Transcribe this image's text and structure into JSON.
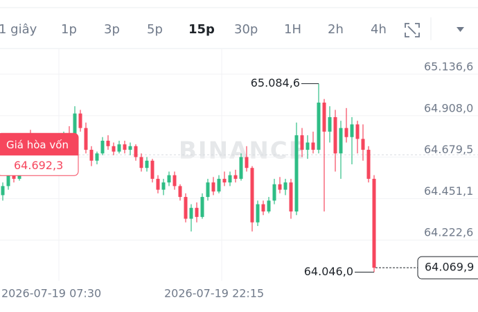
{
  "toolbar": {
    "tabs": [
      "1 giây",
      "1p",
      "3p",
      "5p",
      "15p",
      "30p",
      "1H",
      "2h",
      "4h"
    ],
    "active": "15p"
  },
  "chart_data": {
    "type": "candlestick",
    "watermark": "BINANCE",
    "up_color": "#2ebd85",
    "down_color": "#f6465d",
    "x_labels": [
      "2026-07-19 07:30",
      "2026-07-19 22:15"
    ],
    "ylim": [
      63998,
      65278
    ],
    "yticks": [
      {
        "value": 65136.6,
        "label": "65.136,6"
      },
      {
        "value": 64908.0,
        "label": "64.908,0"
      },
      {
        "value": 64679.5,
        "label": "64.679,5"
      },
      {
        "value": 64451.1,
        "label": "64.451,1"
      },
      {
        "value": 64222.6,
        "label": "64.222,6"
      }
    ],
    "grid": true,
    "break_even": {
      "title": "Giá hòa vốn",
      "value": 64692.3,
      "label": "64.692,3"
    },
    "current_price": {
      "value": 64069.9,
      "label": "64.069,9"
    },
    "high_label": {
      "value": 65084.6,
      "label": "65.084,6"
    },
    "low_label": {
      "value": 64046.0,
      "label": "64.046,0"
    },
    "candles": [
      [
        64470,
        64540,
        64440,
        64520
      ],
      [
        64520,
        64600,
        64500,
        64580
      ],
      [
        64580,
        64640,
        64540,
        64560
      ],
      [
        64560,
        64720,
        64550,
        64700
      ],
      [
        64700,
        64790,
        64680,
        64760
      ],
      [
        64760,
        64830,
        64720,
        64740
      ],
      [
        64740,
        64760,
        64640,
        64670
      ],
      [
        64670,
        64720,
        64620,
        64700
      ],
      [
        64700,
        64730,
        64650,
        64660
      ],
      [
        64660,
        64700,
        64610,
        64680
      ],
      [
        64680,
        64760,
        64660,
        64740
      ],
      [
        64740,
        64820,
        64720,
        64800
      ],
      [
        64800,
        64850,
        64750,
        64780
      ],
      [
        64780,
        64960,
        64770,
        64920
      ],
      [
        64920,
        64940,
        64820,
        64840
      ],
      [
        64840,
        64870,
        64700,
        64720
      ],
      [
        64720,
        64740,
        64630,
        64660
      ],
      [
        64660,
        64710,
        64640,
        64700
      ],
      [
        64700,
        64790,
        64690,
        64770
      ],
      [
        64770,
        64800,
        64720,
        64740
      ],
      [
        64740,
        64760,
        64690,
        64710
      ],
      [
        64710,
        64770,
        64700,
        64750
      ],
      [
        64750,
        64770,
        64700,
        64720
      ],
      [
        64720,
        64760,
        64690,
        64740
      ],
      [
        64740,
        64750,
        64660,
        64680
      ],
      [
        64680,
        64700,
        64600,
        64620
      ],
      [
        64620,
        64680,
        64600,
        64660
      ],
      [
        64660,
        64670,
        64540,
        64560
      ],
      [
        64560,
        64580,
        64480,
        64500
      ],
      [
        64500,
        64560,
        64470,
        64540
      ],
      [
        64540,
        64600,
        64520,
        64580
      ],
      [
        64580,
        64600,
        64500,
        64520
      ],
      [
        64520,
        64530,
        64440,
        64460
      ],
      [
        64460,
        64480,
        64320,
        64340
      ],
      [
        64340,
        64420,
        64270,
        64400
      ],
      [
        64400,
        64430,
        64320,
        64350
      ],
      [
        64350,
        64480,
        64340,
        64460
      ],
      [
        64460,
        64560,
        64440,
        64540
      ],
      [
        64540,
        64570,
        64470,
        64490
      ],
      [
        64490,
        64580,
        64480,
        64560
      ],
      [
        64560,
        64600,
        64520,
        64540
      ],
      [
        64540,
        64600,
        64520,
        64580
      ],
      [
        64580,
        64610,
        64540,
        64560
      ],
      [
        64560,
        64700,
        64550,
        64680
      ],
      [
        64680,
        64740,
        64600,
        64620
      ],
      [
        64620,
        64630,
        64270,
        64320
      ],
      [
        64320,
        64440,
        64300,
        64420
      ],
      [
        64420,
        64440,
        64360,
        64380
      ],
      [
        64380,
        64460,
        64370,
        64440
      ],
      [
        64440,
        64560,
        64420,
        64530
      ],
      [
        64530,
        64570,
        64480,
        64500
      ],
      [
        64500,
        64560,
        64470,
        64540
      ],
      [
        64540,
        64560,
        64340,
        64380
      ],
      [
        64380,
        64870,
        64360,
        64800
      ],
      [
        64800,
        64840,
        64680,
        64720
      ],
      [
        64720,
        64800,
        64670,
        64760
      ],
      [
        64760,
        64820,
        64700,
        64720
      ],
      [
        64720,
        65084.6,
        64700,
        64980
      ],
      [
        64980,
        65000,
        64380,
        64820
      ],
      [
        64820,
        64960,
        64760,
        64900
      ],
      [
        64900,
        64940,
        64600,
        64700
      ],
      [
        64700,
        64880,
        64560,
        64840
      ],
      [
        64840,
        64950,
        64760,
        64790
      ],
      [
        64790,
        64900,
        64640,
        64860
      ],
      [
        64860,
        64880,
        64700,
        64780
      ],
      [
        64780,
        64860,
        64660,
        64720
      ],
      [
        64720,
        64740,
        64540,
        64560
      ],
      [
        64560,
        64580,
        64046.0,
        64069.9
      ]
    ]
  }
}
